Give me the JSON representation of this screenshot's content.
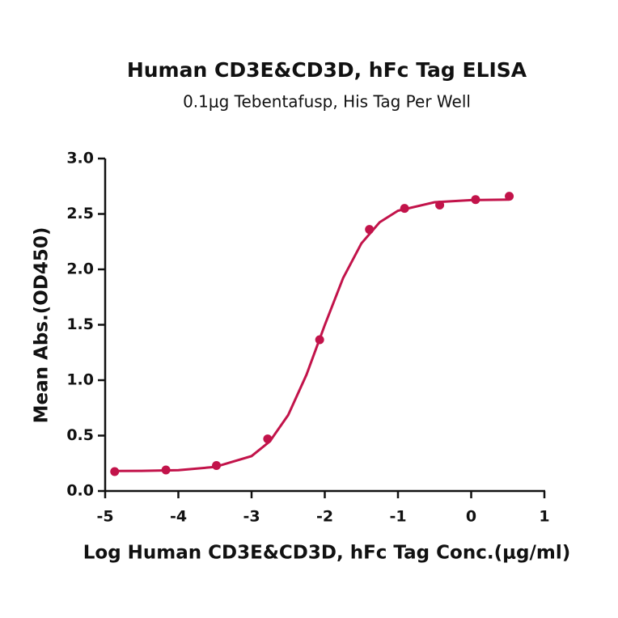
{
  "chart_data": {
    "type": "scatter",
    "title": "Human CD3E&CD3D, hFc Tag ELISA",
    "subtitle": "0.1μg Tebentafusp, His Tag Per Well",
    "x_label": "Log Human CD3E&CD3D, hFc Tag Conc.(μg/ml)",
    "y_label": "Mean Abs.(OD450)",
    "xlim": [
      -5,
      1
    ],
    "xticks": [
      -5,
      -4,
      -3,
      -2,
      -1,
      0,
      1
    ],
    "ylim": [
      0,
      3
    ],
    "yticks": [
      {
        "value": 0,
        "label": "0.0"
      },
      0.5,
      {
        "value": 1,
        "label": "1.0"
      },
      1.5,
      {
        "value": 2,
        "label": "2.0"
      },
      2.5,
      {
        "value": 3,
        "label": "3.0"
      }
    ],
    "series": [
      {
        "type": "scatter",
        "color": "#c2134a",
        "x": [
          -4.87,
          -4.17,
          -3.48,
          -2.78,
          -2.07,
          -1.39,
          -0.91,
          -0.43,
          0.06,
          0.52
        ],
        "values": [
          0.175,
          0.19,
          0.23,
          0.47,
          1.365,
          2.36,
          2.55,
          2.58,
          2.63,
          2.66
        ]
      },
      {
        "type": "line",
        "color": "#c2134a",
        "x": [
          -4.87,
          -4.5,
          -4,
          -3.5,
          -3,
          -2.75,
          -2.5,
          -2.25,
          -2,
          -1.75,
          -1.5,
          -1.25,
          -1,
          -0.5,
          0,
          0.52
        ],
        "values": [
          0.181,
          0.182,
          0.188,
          0.217,
          0.315,
          0.448,
          0.685,
          1.049,
          1.497,
          1.921,
          2.234,
          2.425,
          2.529,
          2.606,
          2.625,
          2.63
        ]
      }
    ]
  }
}
